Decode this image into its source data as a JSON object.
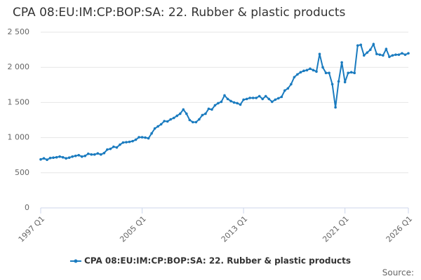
{
  "chart_data": {
    "type": "line",
    "title": "CPA 08:EU:IM:CP:BOP:SA: 22. Rubber & plastic products",
    "categories": [
      "1997 Q1",
      null,
      null,
      null,
      null,
      null,
      null,
      null,
      null,
      null,
      null,
      null,
      null,
      null,
      null,
      null,
      null,
      null,
      null,
      null,
      null,
      null,
      null,
      null,
      null,
      null,
      null,
      null,
      null,
      null,
      null,
      null,
      "2005 Q1",
      null,
      null,
      null,
      null,
      null,
      null,
      null,
      null,
      null,
      null,
      null,
      null,
      null,
      null,
      null,
      null,
      null,
      null,
      null,
      null,
      null,
      null,
      null,
      null,
      null,
      null,
      null,
      null,
      null,
      null,
      null,
      "2013 Q1",
      null,
      null,
      null,
      null,
      null,
      null,
      null,
      null,
      null,
      null,
      null,
      null,
      null,
      null,
      null,
      null,
      null,
      null,
      null,
      null,
      null,
      null,
      null,
      null,
      null,
      null,
      null,
      null,
      null,
      null,
      null,
      "2021 Q1",
      null,
      null,
      null,
      null,
      null,
      null,
      null,
      null,
      null,
      null,
      null,
      null,
      null,
      null,
      null,
      null,
      null,
      null,
      null,
      "2026 Q1"
    ],
    "series": [
      {
        "name": "CPA 08:EU:IM:CP:BOP:SA: 22. Rubber & plastic products",
        "color": "#1a7bbf",
        "values": [
          690,
          705,
          685,
          710,
          715,
          720,
          730,
          720,
          705,
          715,
          730,
          740,
          750,
          730,
          740,
          770,
          760,
          760,
          775,
          760,
          780,
          830,
          840,
          870,
          860,
          900,
          930,
          935,
          940,
          950,
          970,
          1005,
          1005,
          1000,
          990,
          1060,
          1130,
          1160,
          1190,
          1235,
          1230,
          1260,
          1280,
          1310,
          1340,
          1400,
          1340,
          1250,
          1220,
          1220,
          1260,
          1320,
          1340,
          1410,
          1400,
          1460,
          1490,
          1510,
          1600,
          1550,
          1520,
          1500,
          1490,
          1470,
          1540,
          1550,
          1565,
          1565,
          1565,
          1590,
          1550,
          1590,
          1550,
          1510,
          1540,
          1560,
          1580,
          1670,
          1700,
          1760,
          1860,
          1900,
          1930,
          1950,
          1960,
          1980,
          1960,
          1940,
          2190,
          2000,
          1920,
          1920,
          1760,
          1430,
          1800,
          2070,
          1790,
          1920,
          1930,
          1920,
          2310,
          2320,
          2170,
          2210,
          2250,
          2330,
          2190,
          2180,
          2170,
          2260,
          2150,
          2170,
          2180,
          2180,
          2200,
          2180,
          2200
        ]
      }
    ],
    "ylim": [
      0,
      2500
    ],
    "yticks": [
      0,
      500,
      {
        "value": 1000,
        "label": "1 000"
      },
      {
        "value": 1500,
        "label": "1 500"
      },
      {
        "value": 2000,
        "label": "2 000"
      },
      {
        "value": 2500,
        "label": "2 500"
      }
    ],
    "grid": true,
    "legend": "bottom",
    "source": "Source:"
  }
}
